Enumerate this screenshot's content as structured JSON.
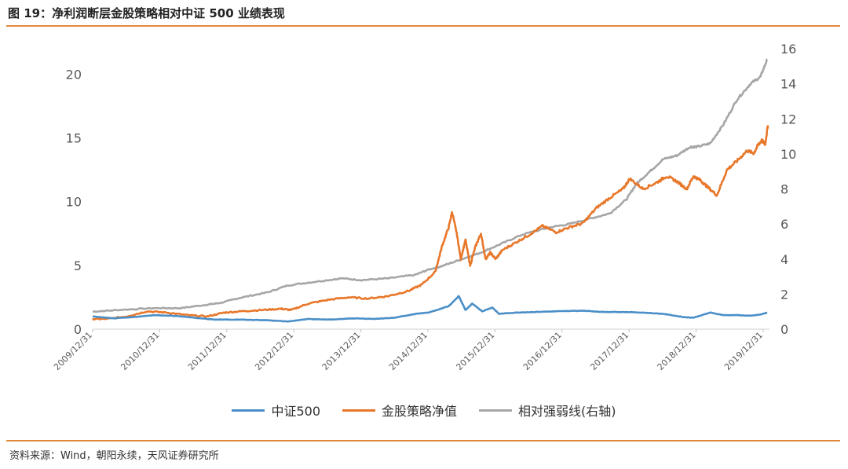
{
  "title": "图 19：净利润断层金股策略相对中证 500 业绩表现",
  "source": "资料来源：Wind，朝阳永续，天风证券研究所",
  "colors": {
    "accent": "#e0893a",
    "zz500": "#4a8fc8",
    "strategy": "#e8772a",
    "relative": "#a6a6a6"
  },
  "chart_data": {
    "type": "line",
    "x_ticks": [
      "2009/12/31",
      "2010/12/31",
      "2011/12/31",
      "2012/12/31",
      "2013/12/31",
      "2014/12/31",
      "2015/12/31",
      "2016/12/31",
      "2017/12/31",
      "2018/12/31",
      "2019/12/31"
    ],
    "ylim_left": [
      0,
      22
    ],
    "yticks_left": [
      "0",
      "5",
      "10",
      "15",
      "20"
    ],
    "ylim_right": [
      0,
      16
    ],
    "yticks_right": [
      "0",
      "2",
      "4",
      "6",
      "8",
      "10",
      "12",
      "14",
      "16"
    ],
    "legend_position": "bottom",
    "grid": false,
    "series": [
      {
        "name": "中证500",
        "axis": "left",
        "x": [
          2009.99,
          2010.3,
          2010.6,
          2010.9,
          2011.2,
          2011.5,
          2011.8,
          2012.2,
          2012.6,
          2012.9,
          2013.2,
          2013.5,
          2013.9,
          2014.2,
          2014.5,
          2014.8,
          2015.0,
          2015.3,
          2015.45,
          2015.55,
          2015.65,
          2015.8,
          2015.95,
          2016.05,
          2016.3,
          2016.6,
          2016.9,
          2017.3,
          2017.6,
          2017.9,
          2018.2,
          2018.5,
          2018.8,
          2018.95,
          2019.2,
          2019.4,
          2019.6,
          2019.8,
          2019.95,
          2020.05
        ],
        "y": [
          1.0,
          0.85,
          0.95,
          1.1,
          1.05,
          0.9,
          0.75,
          0.75,
          0.7,
          0.6,
          0.8,
          0.75,
          0.85,
          0.8,
          0.9,
          1.2,
          1.3,
          1.8,
          2.6,
          1.5,
          2.0,
          1.4,
          1.7,
          1.2,
          1.3,
          1.35,
          1.4,
          1.45,
          1.35,
          1.35,
          1.3,
          1.2,
          0.95,
          0.9,
          1.3,
          1.1,
          1.1,
          1.05,
          1.15,
          1.3
        ]
      },
      {
        "name": "金股策略净值",
        "axis": "left",
        "x": [
          2009.99,
          2010.2,
          2010.5,
          2010.8,
          2011.1,
          2011.4,
          2011.7,
          2011.95,
          2012.2,
          2012.5,
          2012.8,
          2012.95,
          2013.2,
          2013.5,
          2013.8,
          2014.1,
          2014.4,
          2014.7,
          2014.9,
          2015.1,
          2015.2,
          2015.3,
          2015.35,
          2015.42,
          2015.48,
          2015.55,
          2015.62,
          2015.7,
          2015.78,
          2015.85,
          2015.92,
          2016.0,
          2016.1,
          2016.3,
          2016.5,
          2016.7,
          2016.9,
          2017.1,
          2017.3,
          2017.5,
          2017.7,
          2017.9,
          2018.0,
          2018.2,
          2018.4,
          2018.55,
          2018.7,
          2018.85,
          2018.95,
          2019.05,
          2019.15,
          2019.3,
          2019.45,
          2019.6,
          2019.75,
          2019.85,
          2019.92,
          2019.97,
          2020.02,
          2020.06
        ],
        "y": [
          0.8,
          0.8,
          1.0,
          1.4,
          1.3,
          1.1,
          1.0,
          1.3,
          1.4,
          1.5,
          1.6,
          1.5,
          2.0,
          2.3,
          2.5,
          2.4,
          2.6,
          3.0,
          3.5,
          4.5,
          6.5,
          8.0,
          9.2,
          7.5,
          5.5,
          7.0,
          5.0,
          6.5,
          7.5,
          5.5,
          6.0,
          5.5,
          6.2,
          6.8,
          7.4,
          8.1,
          7.6,
          8.0,
          8.3,
          9.5,
          10.3,
          11.0,
          11.8,
          11.0,
          11.5,
          12.0,
          11.6,
          11.0,
          12.0,
          11.7,
          11.2,
          10.5,
          12.5,
          13.2,
          14.0,
          13.8,
          14.5,
          14.8,
          14.5,
          16.0
        ]
      },
      {
        "name": "相对强弱线(右轴)",
        "axis": "right",
        "x": [
          2009.99,
          2010.4,
          2010.9,
          2011.3,
          2011.7,
          2011.9,
          2012.2,
          2012.6,
          2012.9,
          2013.3,
          2013.7,
          2014.0,
          2014.4,
          2014.8,
          2015.0,
          2015.2,
          2015.5,
          2015.8,
          2016.1,
          2016.4,
          2016.8,
          2017.1,
          2017.4,
          2017.7,
          2017.95,
          2018.1,
          2018.3,
          2018.5,
          2018.7,
          2018.9,
          2019.0,
          2019.2,
          2019.4,
          2019.6,
          2019.8,
          2019.95,
          2020.05
        ],
        "y": [
          1.0,
          1.1,
          1.2,
          1.2,
          1.4,
          1.5,
          1.8,
          2.1,
          2.5,
          2.7,
          2.9,
          2.8,
          2.9,
          3.1,
          3.4,
          3.6,
          4.0,
          4.4,
          4.9,
          5.4,
          5.8,
          6.0,
          6.3,
          6.6,
          7.4,
          8.3,
          9.0,
          9.7,
          9.9,
          10.4,
          10.4,
          10.6,
          11.7,
          13.1,
          14.0,
          14.4,
          15.4
        ]
      }
    ]
  }
}
